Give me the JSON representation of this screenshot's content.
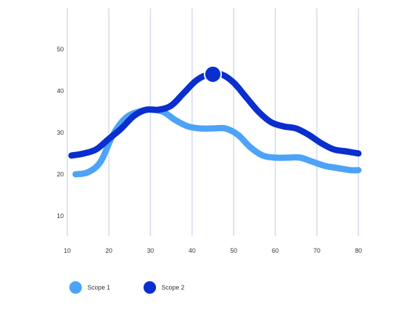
{
  "chart_data": {
    "type": "line",
    "title": "",
    "xlabel": "",
    "ylabel": "",
    "x_ticks": [
      10,
      20,
      30,
      40,
      50,
      60,
      70,
      80
    ],
    "y_ticks": [
      10,
      20,
      30,
      40,
      50
    ],
    "xlim": [
      9,
      81
    ],
    "ylim": [
      5.5,
      59.5
    ],
    "grid": {
      "vertical": true,
      "horizontal": false
    },
    "legend_position": "bottom-left",
    "series": [
      {
        "name": "Scope 1",
        "color": "#4da3f7",
        "x": [
          12,
          15,
          18,
          21,
          24,
          27,
          30,
          33,
          36,
          39,
          42,
          45,
          48,
          51,
          54,
          57,
          60,
          63,
          66,
          69,
          72,
          75,
          78,
          80
        ],
        "y": [
          20,
          20.5,
          23,
          29.5,
          33.5,
          35,
          35.5,
          35,
          33,
          31.5,
          31,
          31,
          31,
          29.5,
          26.5,
          24.5,
          24,
          24,
          24,
          23,
          22,
          21.5,
          21,
          21
        ]
      },
      {
        "name": "Scope 2",
        "color": "#0a2fcf",
        "x": [
          11,
          14,
          17,
          20,
          23,
          26,
          29,
          32,
          35,
          38,
          41,
          44,
          47,
          50,
          53,
          56,
          59,
          62,
          65,
          68,
          71,
          74,
          77,
          80
        ],
        "y": [
          24.5,
          25,
          26,
          28.5,
          31,
          34,
          35.5,
          35.5,
          36.5,
          39.5,
          42.5,
          44,
          44,
          42,
          38.5,
          35,
          32.5,
          31.5,
          31,
          29.5,
          27.5,
          26,
          25.5,
          25
        ]
      }
    ],
    "highlight": {
      "series": "Scope 2",
      "x": 45,
      "y": 44,
      "color": "#0a2fcf"
    }
  }
}
